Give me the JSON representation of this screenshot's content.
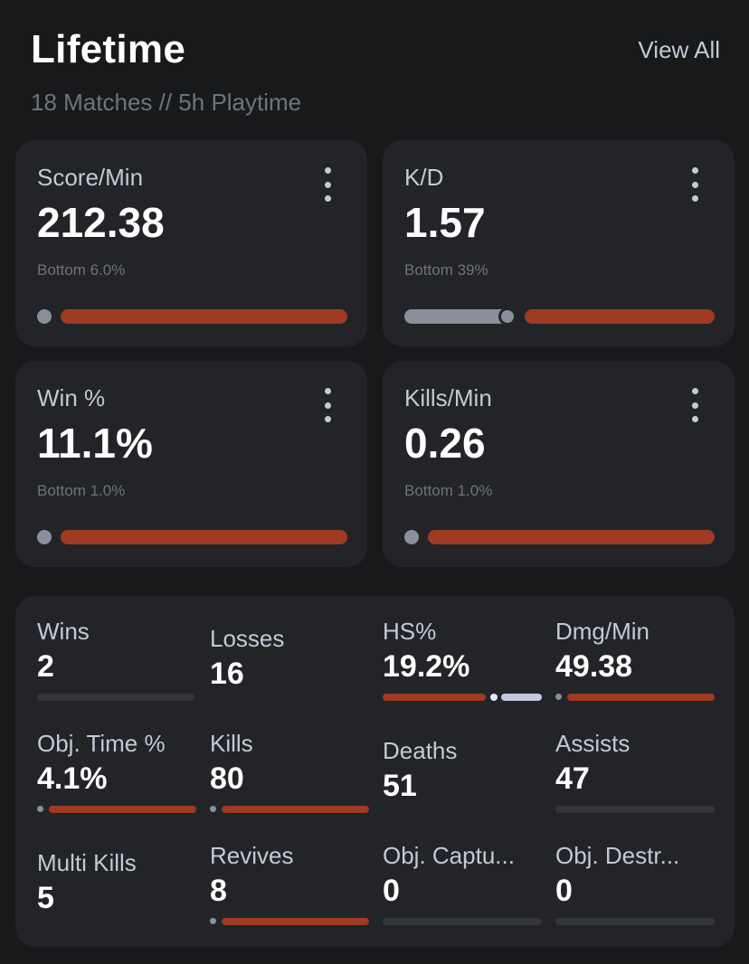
{
  "header": {
    "title": "Lifetime",
    "subtitle": "18 Matches // 5h Playtime",
    "view_all": "View All"
  },
  "cards": [
    {
      "label": "Score/Min",
      "value": "212.38",
      "rank": "Bottom 6.0%",
      "percentile": 6.0
    },
    {
      "label": "K/D",
      "value": "1.57",
      "rank": "Bottom 39%",
      "percentile": 39
    },
    {
      "label": "Win %",
      "value": "11.1%",
      "rank": "Bottom 1.0%",
      "percentile": 1.0
    },
    {
      "label": "Kills/Min",
      "value": "0.26",
      "rank": "Bottom 1.0%",
      "percentile": 1.0
    }
  ],
  "stats": [
    {
      "label": "Wins",
      "value": "2"
    },
    {
      "label": "Losses",
      "value": "16"
    },
    {
      "label": "HS%",
      "value": "19.2%"
    },
    {
      "label": "Dmg/Min",
      "value": "49.38"
    },
    {
      "label": "Obj. Time %",
      "value": "4.1%"
    },
    {
      "label": "Kills",
      "value": "80"
    },
    {
      "label": "Deaths",
      "value": "51"
    },
    {
      "label": "Assists",
      "value": "47"
    },
    {
      "label": "Multi Kills",
      "value": "5"
    },
    {
      "label": "Revives",
      "value": "8"
    },
    {
      "label": "Obj. Captu...",
      "value": "0"
    },
    {
      "label": "Obj. Destr...",
      "value": "0"
    }
  ],
  "colors": {
    "background": "#18191b",
    "card": "#232428",
    "accent_bar": "#9e3b22",
    "muted_text": "#6f737b",
    "label_text": "#c4c9d6"
  }
}
